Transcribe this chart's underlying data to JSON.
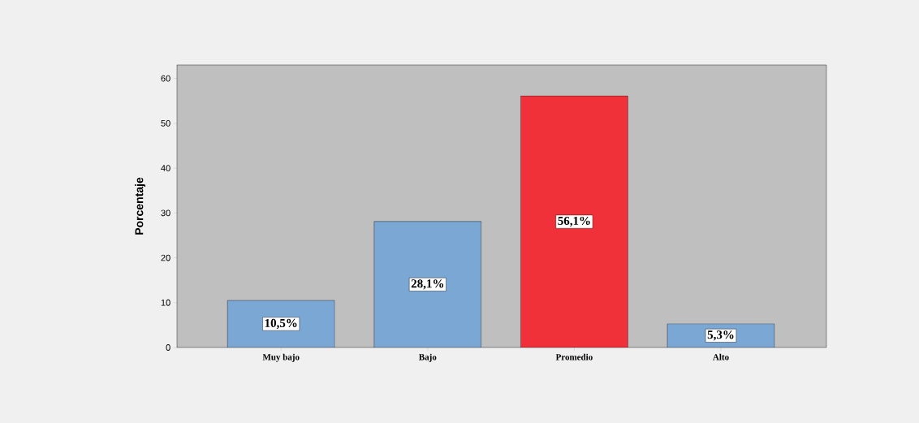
{
  "chart_data": {
    "type": "bar",
    "ylabel": "Porcentaje",
    "categories": [
      "Muy bajo",
      "Bajo",
      "Promedio",
      "Alto"
    ],
    "values": [
      10.5,
      28.1,
      56.1,
      5.3
    ],
    "colors": [
      "#7ba7d4",
      "#7ba7d4",
      "#f0313a",
      "#7ba7d4"
    ],
    "value_labels": [
      "10,5%",
      "28,1%",
      "56,1%",
      "5,3%"
    ],
    "ylim": [
      0,
      63
    ],
    "yticks": [
      0,
      10,
      20,
      30,
      40,
      50,
      60
    ],
    "grid": false
  }
}
